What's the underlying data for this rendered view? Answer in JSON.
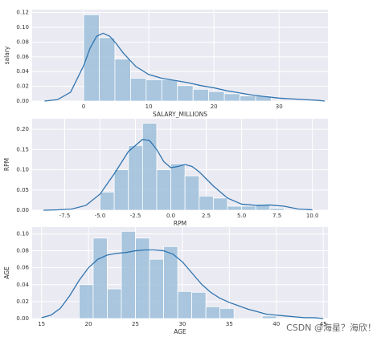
{
  "chart_data": [
    {
      "type": "histogram",
      "xlabel": "SALARY_MILLIONS",
      "ylabel": "salary",
      "bins": [
        0,
        2.4,
        4.8,
        7.2,
        9.6,
        12,
        14.4,
        16.8,
        19.2,
        21.6,
        24,
        26.4,
        28.8
      ],
      "values": [
        0.117,
        0.086,
        0.057,
        0.031,
        0.029,
        0.029,
        0.021,
        0.016,
        0.013,
        0.01,
        0.007,
        0.007
      ],
      "kde_x": [
        -6,
        -4,
        -2,
        0,
        1,
        2,
        3,
        4,
        5,
        6,
        8,
        10,
        12,
        14,
        16,
        18,
        20,
        22,
        24,
        26,
        28,
        30,
        32,
        34,
        36,
        37
      ],
      "kde_y": [
        0.0,
        0.002,
        0.012,
        0.048,
        0.072,
        0.088,
        0.092,
        0.088,
        0.078,
        0.066,
        0.047,
        0.036,
        0.031,
        0.028,
        0.025,
        0.021,
        0.018,
        0.014,
        0.011,
        0.008,
        0.006,
        0.004,
        0.003,
        0.002,
        0.001,
        0.0
      ],
      "color": "#9ebfdb",
      "line_color": "#2f74b0",
      "xlim": [
        -7.9,
        37.5
      ],
      "ylim": [
        0,
        0.124
      ],
      "xticks": [
        0,
        10,
        20,
        30
      ],
      "yticks": [
        {
          "value": 0,
          "label": "0.00"
        },
        {
          "value": 0.02,
          "label": "0.02"
        },
        {
          "value": 0.04,
          "label": "0.04"
        },
        {
          "value": 0.06,
          "label": "0.06"
        },
        {
          "value": 0.08,
          "label": "0.08"
        },
        {
          "value": 0.1,
          "label": "0.10"
        },
        {
          "value": 0.12,
          "label": "0.12"
        }
      ],
      "grid": true
    },
    {
      "type": "histogram",
      "xlabel": "RPM",
      "ylabel": "RPM",
      "bins": [
        -5,
        -4,
        -3,
        -2,
        -1,
        0,
        1,
        2,
        3,
        4,
        5,
        6,
        7,
        8
      ],
      "values": [
        0.045,
        0.1,
        0.16,
        0.215,
        0.1,
        0.115,
        0.085,
        0.035,
        0.03,
        0.01,
        0.01,
        0.015,
        0.005
      ],
      "kde_x": [
        -9,
        -8,
        -7,
        -6,
        -5,
        -4,
        -3,
        -2,
        -1.5,
        -1,
        -0.5,
        0,
        0.5,
        1,
        1.5,
        2,
        3,
        4,
        5,
        6,
        7,
        8,
        9,
        10
      ],
      "kde_y": [
        0,
        0.001,
        0.003,
        0.012,
        0.04,
        0.09,
        0.145,
        0.175,
        0.172,
        0.15,
        0.12,
        0.105,
        0.108,
        0.113,
        0.108,
        0.095,
        0.06,
        0.03,
        0.015,
        0.012,
        0.013,
        0.01,
        0.003,
        0.001
      ],
      "color": "#9ebfdb",
      "line_color": "#2f74b0",
      "xlim": [
        -9.8,
        11.1
      ],
      "ylim": [
        0,
        0.226
      ],
      "xticks": [
        -7.5,
        {
          "value": -5,
          "label": "-5.0"
        },
        -2.5,
        {
          "value": 0,
          "label": "0.0"
        },
        2.5,
        {
          "value": 5,
          "label": "5.0"
        },
        7.5,
        {
          "value": 10,
          "label": "10.0"
        }
      ],
      "yticks": [
        {
          "value": 0,
          "label": "0.00"
        },
        {
          "value": 0.05,
          "label": "0.05"
        },
        {
          "value": 0.1,
          "label": "0.10"
        },
        {
          "value": 0.15,
          "label": "0.15"
        },
        {
          "value": 0.2,
          "label": "0.20"
        }
      ],
      "grid": true
    },
    {
      "type": "histogram",
      "xlabel": "AGE",
      "ylabel": "AGE",
      "bins": [
        19,
        20.5,
        22,
        23.5,
        25,
        26.5,
        28,
        29.5,
        31,
        32.5,
        34,
        35.5,
        37,
        38.5,
        40
      ],
      "values": [
        0.04,
        0.095,
        0.035,
        0.103,
        0.095,
        0.07,
        0.085,
        0.032,
        0.031,
        0.014,
        0.012,
        0,
        0,
        0.003
      ],
      "kde_x": [
        15,
        16,
        17,
        18,
        19,
        20,
        21,
        22,
        23,
        24,
        25,
        26,
        27,
        28,
        29,
        30,
        31,
        32,
        33,
        34,
        35,
        36,
        37,
        38,
        39,
        40,
        41,
        42,
        43,
        44,
        45
      ],
      "kde_y": [
        0.001,
        0.004,
        0.012,
        0.027,
        0.045,
        0.06,
        0.07,
        0.075,
        0.077,
        0.078,
        0.08,
        0.081,
        0.081,
        0.08,
        0.076,
        0.067,
        0.054,
        0.041,
        0.031,
        0.024,
        0.019,
        0.015,
        0.011,
        0.008,
        0.005,
        0.004,
        0.003,
        0.002,
        0.001,
        0.001,
        0.0
      ],
      "color": "#9ebfdb",
      "line_color": "#2f74b0",
      "xlim": [
        14,
        45.5
      ],
      "ylim": [
        0,
        0.108
      ],
      "xticks": [
        15,
        20,
        25,
        30,
        35,
        40,
        45
      ],
      "yticks": [
        {
          "value": 0,
          "label": "0.00"
        },
        {
          "value": 0.02,
          "label": "0.02"
        },
        {
          "value": 0.04,
          "label": "0.04"
        },
        {
          "value": 0.06,
          "label": "0.06"
        },
        {
          "value": 0.08,
          "label": "0.08"
        },
        {
          "value": 0.1,
          "label": "0.10"
        }
      ],
      "grid": true
    }
  ],
  "watermark": "CSDN @海星？海欣！"
}
